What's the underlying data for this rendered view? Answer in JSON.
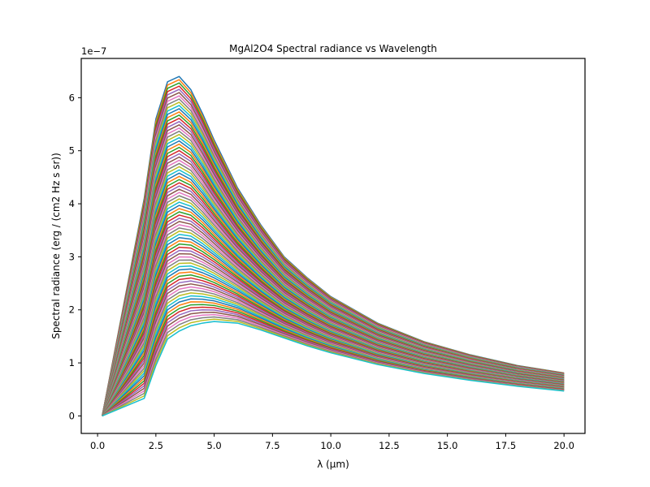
{
  "chart_data": {
    "type": "line",
    "title": "MgAl2O4 Spectral radiance vs Wavelength",
    "xlabel": "λ (μm)",
    "ylabel": "Spectral radiance (erg / (cm2 Hz s sr))",
    "y_offset_text": "1e−7",
    "xlim": [
      -0.7,
      20.9
    ],
    "ylim": [
      -0.33,
      6.74
    ],
    "y_scale_factor": 1e-07,
    "x_ticks": [
      0.0,
      2.5,
      5.0,
      7.5,
      10.0,
      12.5,
      15.0,
      17.5,
      20.0
    ],
    "x_tick_labels": [
      "0.0",
      "2.5",
      "5.0",
      "7.5",
      "10.0",
      "12.5",
      "15.0",
      "17.5",
      "20.0"
    ],
    "y_ticks": [
      0,
      1,
      2,
      3,
      4,
      5,
      6
    ],
    "y_tick_labels": [
      "0",
      "1",
      "2",
      "3",
      "4",
      "5",
      "6"
    ],
    "grid": false,
    "legend": "none",
    "series_count": 80,
    "x": [
      0.2,
      2.0,
      2.5,
      3.0,
      3.5,
      4.0,
      4.5,
      5.0,
      6.0,
      7.0,
      8.0,
      9.0,
      10.0,
      12.0,
      14.0,
      16.0,
      18.0,
      20.0
    ],
    "series_top": {
      "values": [
        0.0,
        4.1,
        5.6,
        6.3,
        6.4,
        6.15,
        5.7,
        5.2,
        4.3,
        3.6,
        3.0,
        2.6,
        2.25,
        1.75,
        1.4,
        1.15,
        0.95,
        0.81
      ]
    },
    "series_bottom": {
      "values": [
        0.0,
        0.33,
        0.95,
        1.45,
        1.6,
        1.7,
        1.75,
        1.78,
        1.75,
        1.62,
        1.47,
        1.32,
        1.19,
        0.97,
        0.8,
        0.67,
        0.56,
        0.47
      ]
    },
    "colors": [
      "#1f77b4",
      "#ff7f0e",
      "#2ca02c",
      "#d62728",
      "#9467bd",
      "#8c564b",
      "#e377c2",
      "#7f7f7f",
      "#bcbd22",
      "#17becf"
    ]
  }
}
